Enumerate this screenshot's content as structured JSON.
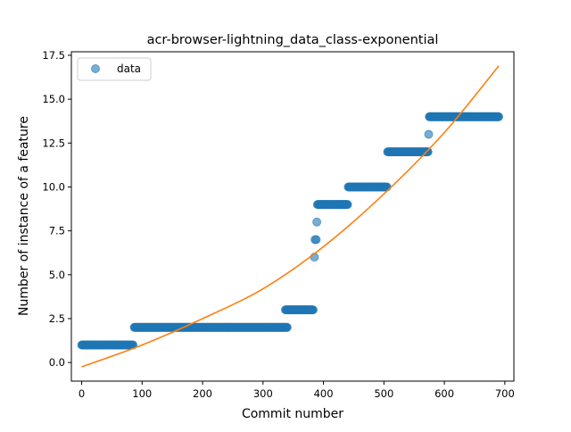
{
  "chart_data": {
    "type": "scatter",
    "title": "acr-browser-lightning_data_class-exponential",
    "xlabel": "Commit number",
    "ylabel": "Number of instance of a feature",
    "xlim": [
      -17,
      715
    ],
    "ylim": [
      -1.06,
      17.7
    ],
    "x_ticks": [
      0,
      100,
      200,
      300,
      400,
      500,
      600,
      700
    ],
    "y_ticks": [
      0.0,
      2.5,
      5.0,
      7.5,
      10.0,
      12.5,
      15.0,
      17.5
    ],
    "x_tick_labels": [
      "0",
      "100",
      "200",
      "300",
      "400",
      "500",
      "600",
      "700"
    ],
    "y_tick_labels": [
      "0.0",
      "2.5",
      "5.0",
      "7.5",
      "10.0",
      "12.5",
      "15.0",
      "17.5"
    ],
    "legend": {
      "placement": "upper-left",
      "entries": [
        "data"
      ]
    },
    "grid": false,
    "series": [
      {
        "name": "data",
        "kind": "points",
        "color": "#1f77b4",
        "segments": [
          {
            "y": 1,
            "x_start": 0,
            "x_end": 85
          },
          {
            "y": 2,
            "x_start": 87,
            "x_end": 340
          },
          {
            "y": 3,
            "x_start": 337,
            "x_end": 383
          },
          {
            "y": 9,
            "x_start": 390,
            "x_end": 440
          },
          {
            "y": 10,
            "x_start": 441,
            "x_end": 505
          },
          {
            "y": 12,
            "x_start": 506,
            "x_end": 573
          },
          {
            "y": 14,
            "x_start": 575,
            "x_end": 690
          }
        ],
        "isolated_points": [
          {
            "x": 385,
            "y": 6
          },
          {
            "x": 386,
            "y": 7
          },
          {
            "x": 388,
            "y": 7
          },
          {
            "x": 389,
            "y": 8
          },
          {
            "x": 574,
            "y": 13
          }
        ]
      },
      {
        "kind": "fit",
        "color": "#ff7f0e",
        "model": "exponential",
        "curve": [
          {
            "x": 0,
            "y": -0.25
          },
          {
            "x": 100,
            "y": 1.0
          },
          {
            "x": 200,
            "y": 2.5
          },
          {
            "x": 300,
            "y": 4.2
          },
          {
            "x": 400,
            "y": 6.6
          },
          {
            "x": 500,
            "y": 9.6
          },
          {
            "x": 600,
            "y": 13.1
          },
          {
            "x": 690,
            "y": 16.9
          }
        ]
      }
    ]
  }
}
